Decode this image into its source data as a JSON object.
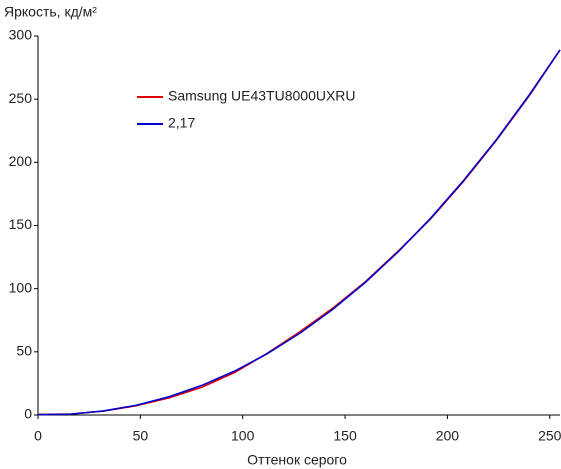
{
  "chart_data": {
    "type": "line",
    "title": "Яркость, кд/м²",
    "xlabel": "Оттенок серого",
    "x": [
      0,
      16,
      32,
      48,
      64,
      80,
      96,
      112,
      128,
      144,
      160,
      176,
      192,
      208,
      224,
      240,
      255
    ],
    "series": [
      {
        "name": "Samsung UE43TU8000UXRU",
        "color": "#e00000",
        "values": [
          0.5,
          0.8,
          3.1,
          7.3,
          13.6,
          22.0,
          33.6,
          48.8,
          66.0,
          84.6,
          105.6,
          129.8,
          155.6,
          185.2,
          217.6,
          252.8,
          289
        ]
      },
      {
        "name": "2,17",
        "color": "#0000d0",
        "values": [
          0.3,
          0.7,
          3.2,
          7.7,
          14.4,
          23.4,
          34.7,
          48.5,
          64.8,
          83.6,
          105.1,
          129.3,
          156.1,
          185.8,
          218.1,
          253.4,
          289
        ]
      }
    ],
    "xlim": [
      0,
      255
    ],
    "ylim": [
      0,
      300
    ],
    "xticks": [
      0,
      50,
      100,
      150,
      200,
      250
    ],
    "yticks": [
      0,
      50,
      100,
      150,
      200,
      250,
      300
    ]
  }
}
